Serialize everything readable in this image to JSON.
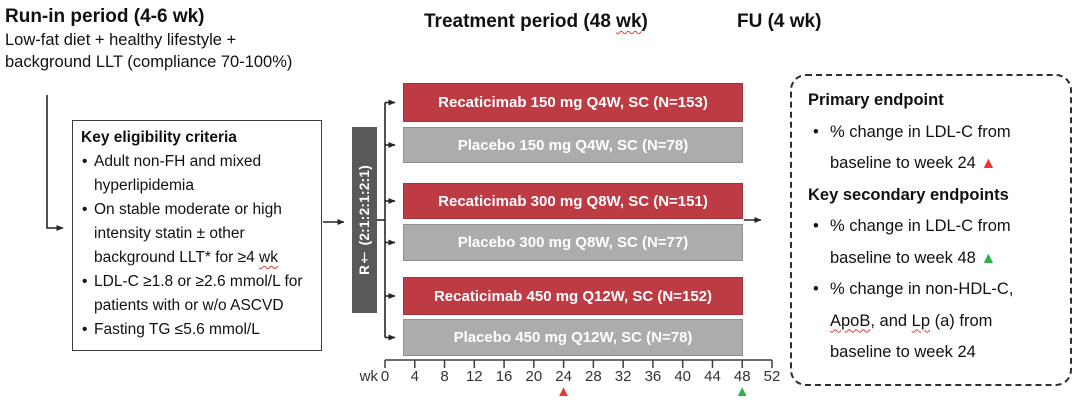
{
  "titles": {
    "run_in": "Run-in period (4-6 wk)",
    "run_in_sub_line1": "Low-fat diet + healthy lifestyle +",
    "run_in_sub_line2": "background LLT (compliance 70-100%)",
    "treatment_segments": [
      {
        "text": "Treatment period (48 "
      },
      {
        "text": "wk",
        "squiggle": true
      },
      {
        "text": ")"
      }
    ],
    "fu": "FU (4 wk)"
  },
  "eligibility": {
    "title": "Key eligibility criteria",
    "items": [
      {
        "segments": [
          {
            "text": "Adult non-FH and mixed hyperlipidemia"
          }
        ]
      },
      {
        "segments": [
          {
            "text": "On stable moderate or high intensity statin ± other background LLT* for ≥4 "
          },
          {
            "text": "wk",
            "squiggle": true
          }
        ]
      },
      {
        "segments": [
          {
            "text": "LDL-C ≥1.8 or ≥2.6 mmol/L for patients with or w/o ASCVD"
          }
        ]
      },
      {
        "segments": [
          {
            "text": "Fasting TG ≤5.6 mmol/L"
          }
        ]
      }
    ]
  },
  "randomization": {
    "label": "R† (2:1:2:1:2:1)"
  },
  "arms": [
    {
      "label": "Recaticimab 150 mg Q4W, SC (N=153)",
      "type": "drug"
    },
    {
      "label": "Placebo 150 mg Q4W, SC (N=78)",
      "type": "placebo"
    },
    {
      "label": "Recaticimab 300 mg Q8W, SC (N=151)",
      "type": "drug"
    },
    {
      "label": "Placebo 300 mg Q8W, SC (N=77)",
      "type": "placebo"
    },
    {
      "label": "Recaticimab 450 mg Q12W, SC (N=152)",
      "type": "drug"
    },
    {
      "label": "Placebo 450 mg Q12W, SC (N=78)",
      "type": "placebo"
    }
  ],
  "timeline": {
    "unit_label": "wk",
    "ticks": [
      0,
      4,
      8,
      12,
      16,
      20,
      24,
      28,
      32,
      36,
      40,
      44,
      48,
      52
    ],
    "markers": [
      {
        "week": 24,
        "color": "#e8392d"
      },
      {
        "week": 48,
        "color": "#2db34a"
      }
    ]
  },
  "endpoints": {
    "sections": [
      {
        "title": "Primary endpoint",
        "items": [
          {
            "segments": [
              {
                "text": "% change in LDL-C from baseline to week 24 "
              },
              {
                "triangle_color": "#e8392d"
              }
            ]
          }
        ]
      },
      {
        "title": "Key secondary endpoints",
        "items": [
          {
            "segments": [
              {
                "text": "% change in LDL-C from baseline to week 48 "
              },
              {
                "triangle_color": "#2db34a"
              }
            ]
          },
          {
            "segments": [
              {
                "text": "% change in non-HDL-C, "
              },
              {
                "text": "ApoB",
                "squiggle": true
              },
              {
                "text": ", and "
              },
              {
                "text": "Lp",
                "squiggle": true
              },
              {
                "text": " (a) from baseline to week 24"
              }
            ]
          }
        ]
      }
    ]
  },
  "icons": {
    "milestone_up_triangle": "▲",
    "bullet": "•"
  },
  "colors": {
    "drug_bar": "#be3b44",
    "placebo_bar": "#acacac",
    "randomization_bar": "#595959",
    "squiggle": "#e03c31",
    "primary_marker": "#e8392d",
    "secondary_marker": "#2db34a"
  }
}
